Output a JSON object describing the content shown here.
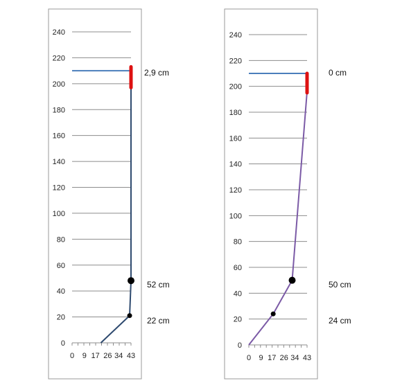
{
  "chart_data": [
    {
      "type": "line",
      "x_ticks": [
        "0",
        "9",
        "17",
        "26",
        "34",
        "43"
      ],
      "y_ticks": [
        "0",
        "20",
        "40",
        "60",
        "80",
        "100",
        "120",
        "140",
        "160",
        "180",
        "200",
        "220",
        "240"
      ],
      "xlim": [
        0,
        43
      ],
      "ylim": [
        0,
        240
      ],
      "grid": "horizontal",
      "series": [
        {
          "color": "#2e4a6f",
          "points": [
            [
              21,
              0
            ],
            [
              42,
              21
            ],
            [
              43,
              48
            ],
            [
              43,
              210
            ]
          ]
        },
        {
          "color": "#4a7ebb",
          "points": [
            [
              0,
              210
            ],
            [
              43,
              210
            ]
          ]
        },
        {
          "color": "#dd1111",
          "points": [
            [
              43,
              197
            ],
            [
              43,
              213
            ]
          ]
        }
      ],
      "markers": [
        {
          "x": 42,
          "y": 21,
          "size": "small"
        },
        {
          "x": 43,
          "y": 48,
          "size": "large"
        }
      ],
      "annotations": [
        "2,9 cm",
        "52 cm",
        "22 cm"
      ]
    },
    {
      "type": "line",
      "x_ticks": [
        "0",
        "9",
        "17",
        "26",
        "34",
        "43"
      ],
      "y_ticks": [
        "0",
        "20",
        "40",
        "60",
        "80",
        "100",
        "120",
        "140",
        "160",
        "180",
        "200",
        "220",
        "240"
      ],
      "xlim": [
        0,
        43
      ],
      "ylim": [
        0,
        240
      ],
      "grid": "horizontal",
      "series": [
        {
          "color": "#7b5aa6",
          "points": [
            [
              0,
              0
            ],
            [
              18,
              24
            ],
            [
              32,
              50
            ],
            [
              43,
              196
            ]
          ]
        },
        {
          "color": "#4a7ebb",
          "points": [
            [
              0,
              210
            ],
            [
              43,
              210
            ]
          ]
        },
        {
          "color": "#dd1111",
          "points": [
            [
              43,
              195
            ],
            [
              43,
              210
            ]
          ]
        }
      ],
      "markers": [
        {
          "x": 18,
          "y": 24,
          "size": "small"
        },
        {
          "x": 32,
          "y": 50,
          "size": "large"
        }
      ],
      "annotations": [
        "0 cm",
        "50 cm",
        "24 cm"
      ]
    }
  ]
}
